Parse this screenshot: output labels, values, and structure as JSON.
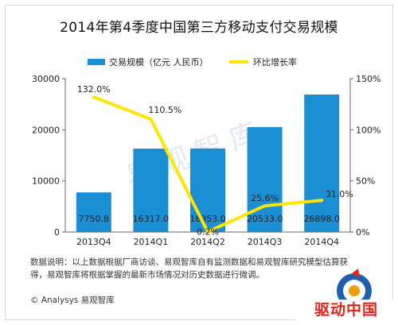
{
  "title": "2014年第4季度中国第三方移动支付交易规模",
  "chart_data": {
    "type": "bar",
    "categories": [
      "2013Q4",
      "2014Q1",
      "2014Q2",
      "2014Q3",
      "2014Q4"
    ],
    "series": [
      {
        "name": "交易规模（亿元 人民币）",
        "type": "bar",
        "axis": "left",
        "color": "#1a8fd4",
        "values": [
          7750.8,
          16317.0,
          16353.0,
          20533.0,
          26898.0
        ],
        "labels": [
          "7750.8",
          "16317.0",
          "16353.0",
          "20533.0",
          "26898.0"
        ]
      },
      {
        "name": "环比增长率",
        "type": "line",
        "axis": "right",
        "color": "#ffe500",
        "values": [
          132.0,
          110.5,
          0.2,
          25.6,
          31.0
        ],
        "labels": [
          "132.0%",
          "110.5%",
          "0.2%",
          "25.6%",
          "31.0%"
        ]
      }
    ],
    "y_left": {
      "ylim": [
        0,
        30000
      ],
      "ticks": [
        "0",
        "10000",
        "20000",
        "30000"
      ]
    },
    "y_right": {
      "ylim": [
        0,
        150
      ],
      "ticks": [
        "0%",
        "50%",
        "100%",
        "150%"
      ]
    },
    "grid": false,
    "legend": "top"
  },
  "watermark": "易观智库",
  "footer": {
    "source": "数据说明：以上数据根据厂商访谈、易观智库自有监测数据和易观智库研究模型估算获得，易观智库将根据掌握的最新市场情况对历史数据进行微调。",
    "copyright": "© Analysys 易观智库"
  },
  "logo": {
    "text": "驱动中国",
    "icon": "q-logo-icon",
    "accent": "#e1251b",
    "accent2": "#1e5fb4"
  }
}
